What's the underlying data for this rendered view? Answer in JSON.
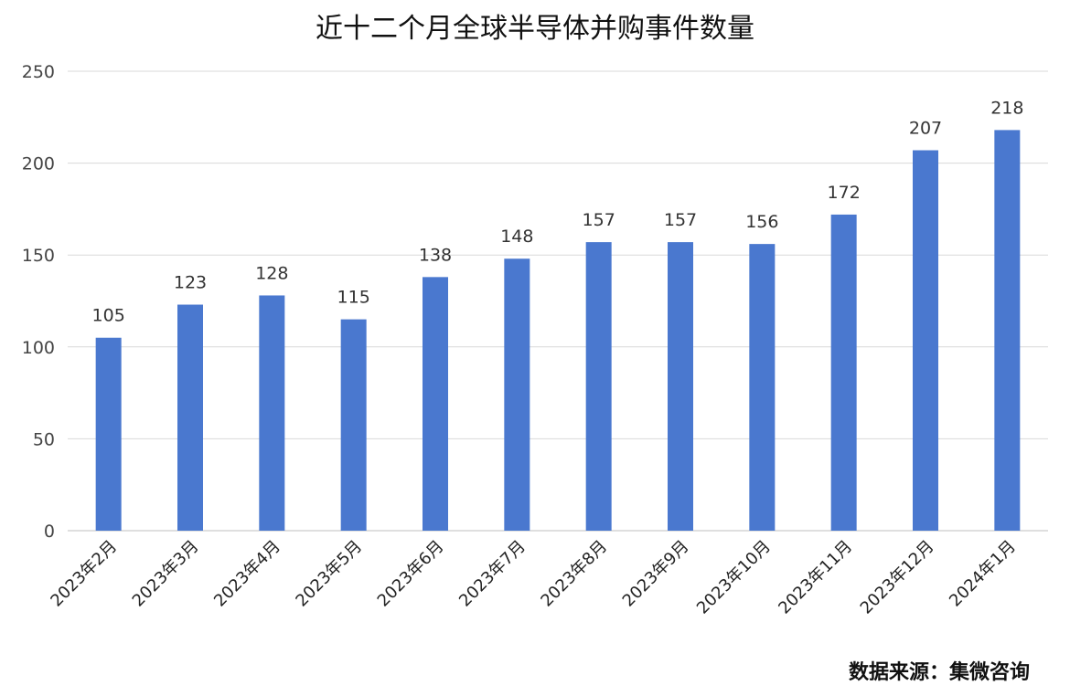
{
  "chart_data": {
    "type": "bar",
    "title": "近十二个月全球半导体并购事件数量",
    "categories": [
      "2023年2月",
      "2023年3月",
      "2023年4月",
      "2023年5月",
      "2023年6月",
      "2023年7月",
      "2023年8月",
      "2023年9月",
      "2023年10月",
      "2023年11月",
      "2023年12月",
      "2024年1月"
    ],
    "values": [
      105,
      123,
      128,
      115,
      138,
      148,
      157,
      157,
      156,
      172,
      207,
      218
    ],
    "ylim": [
      0,
      250
    ],
    "yticks": [
      0,
      50,
      100,
      150,
      200,
      250
    ],
    "grid": true,
    "legend": "none",
    "bar_color": "#4a78cf"
  },
  "source_note": "数据来源：集微咨询"
}
